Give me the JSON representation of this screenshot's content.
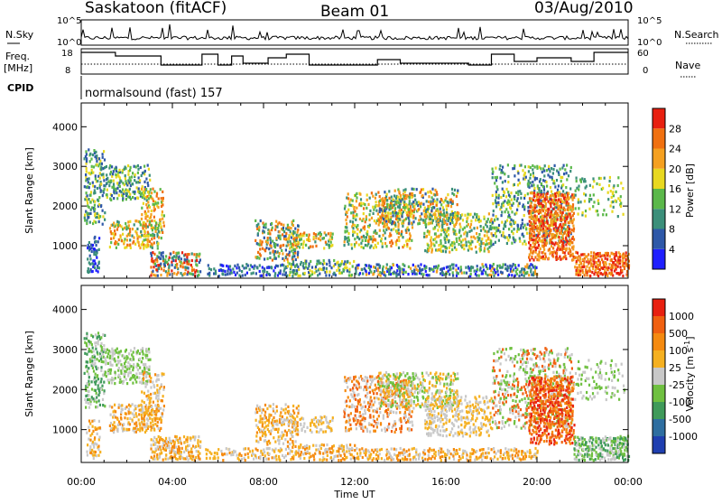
{
  "header": {
    "station": "Saskatoon (fitACF)",
    "beam": "Beam 01",
    "date": "03/Aug/2010"
  },
  "left_labels": {
    "nsky": "N.Sky",
    "freq_line1": "Freq.",
    "freq_line2": "[MHz]",
    "cpid": "CPID"
  },
  "right_labels": {
    "nsearch": "N.Search",
    "nave": "Nave"
  },
  "cpid_text": "normalsound (fast) 157",
  "noise_panel": {
    "left_ticks": [
      "10^5",
      "10^0"
    ],
    "right_ticks": [
      "10^5",
      "10^0"
    ]
  },
  "freq_panel": {
    "left_ticks": [
      "18",
      "8"
    ],
    "right_ticks": [
      "60",
      "0"
    ]
  },
  "chart_data": [
    {
      "type": "heatmap",
      "panel": "power",
      "title": "",
      "xlabel": "Time UT",
      "ylabel": "Slant Range [km]",
      "x_range_hours": [
        0,
        24
      ],
      "ylim": [
        180,
        4600
      ],
      "y_ticks": [
        "1000",
        "2000",
        "3000",
        "4000"
      ],
      "x_ticks": [
        "00:00",
        "04:00",
        "08:00",
        "12:00",
        "16:00",
        "20:00",
        "00:00"
      ],
      "colorbar": {
        "label": "Power [dB]",
        "ticks": [
          "4",
          "8",
          "12",
          "16",
          "20",
          "24",
          "28"
        ],
        "colors": [
          "#1f1fff",
          "#2e58a8",
          "#3b8f7a",
          "#5bb84a",
          "#e8d820",
          "#f5a020",
          "#f07010",
          "#e82010"
        ]
      }
    },
    {
      "type": "heatmap",
      "panel": "velocity",
      "title": "",
      "xlabel": "Time UT",
      "ylabel": "Slant Range [km]",
      "x_range_hours": [
        0,
        24
      ],
      "ylim": [
        180,
        4600
      ],
      "y_ticks": [
        "1000",
        "2000",
        "3000",
        "4000"
      ],
      "x_ticks": [
        "00:00",
        "04:00",
        "08:00",
        "12:00",
        "16:00",
        "20:00",
        "00:00"
      ],
      "colorbar": {
        "label": "Velocity [m s^-1]",
        "ticks": [
          "1000",
          "500",
          "100",
          "25",
          "-25",
          "-100",
          "-500",
          "-1000"
        ],
        "colors": [
          "#1f3fb0",
          "#2e6ea0",
          "#3f9a5a",
          "#6fc040",
          "#c8c8c8",
          "#f5b020",
          "#f58a10",
          "#f06010",
          "#e82010"
        ]
      }
    }
  ],
  "x_axis_title": "Time UT"
}
